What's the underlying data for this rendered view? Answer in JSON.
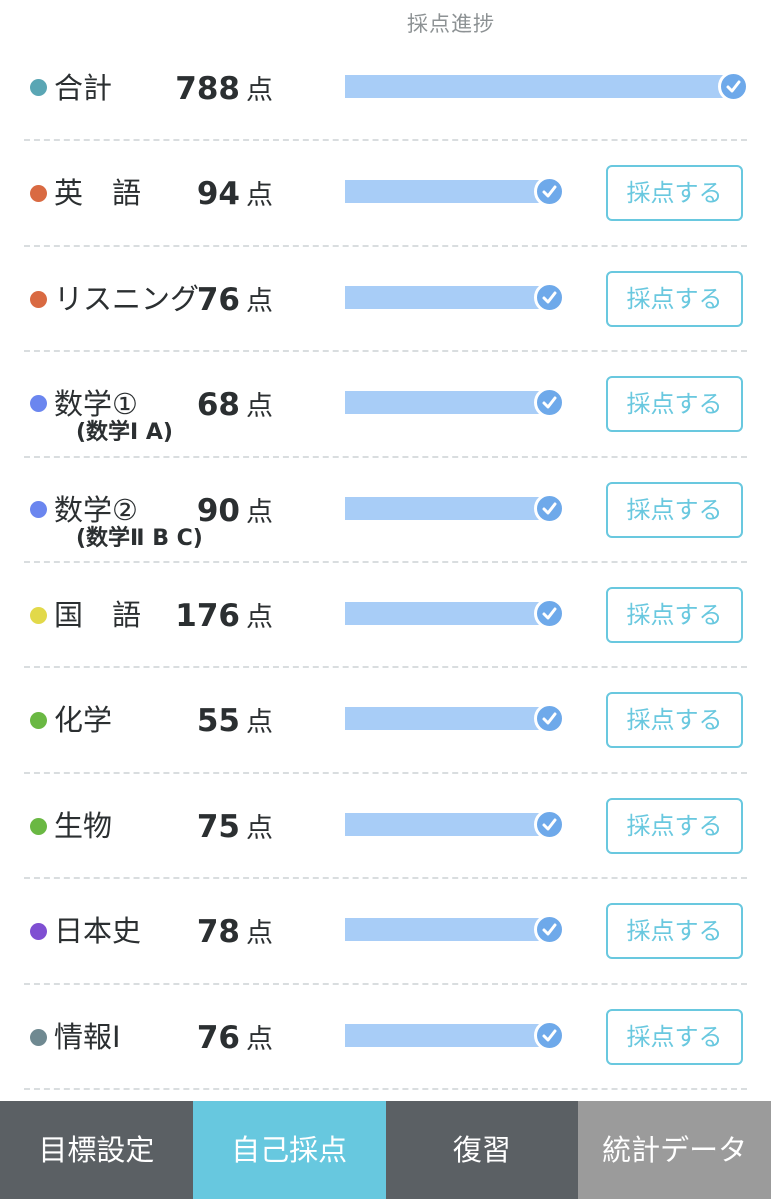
{
  "header": {
    "title": "採点進捗"
  },
  "total": {
    "name": "合計",
    "score": "788",
    "unit": "点",
    "dot_color": "#5aa6b4",
    "progress": 1.0,
    "complete": true
  },
  "subjects": [
    {
      "name": "英　語",
      "sub": "",
      "score": "94",
      "unit": "点",
      "dot_color": "#d96a42",
      "progress": 1.0,
      "complete": true,
      "button": "採点する"
    },
    {
      "name": "リスニング",
      "sub": "",
      "score": "76",
      "unit": "点",
      "dot_color": "#d96a42",
      "progress": 1.0,
      "complete": true,
      "button": "採点する"
    },
    {
      "name": "数学①",
      "sub": "(数学Ⅰ A)",
      "score": "68",
      "unit": "点",
      "dot_color": "#6b86ef",
      "progress": 1.0,
      "complete": true,
      "button": "採点する"
    },
    {
      "name": "数学②",
      "sub": "(数学Ⅱ B C)",
      "score": "90",
      "unit": "点",
      "dot_color": "#6b86ef",
      "progress": 1.0,
      "complete": true,
      "button": "採点する"
    },
    {
      "name": "国　語",
      "sub": "",
      "score": "176",
      "unit": "点",
      "dot_color": "#e2d94a",
      "progress": 1.0,
      "complete": true,
      "button": "採点する"
    },
    {
      "name": "化学",
      "sub": "",
      "score": "55",
      "unit": "点",
      "dot_color": "#6ab843",
      "progress": 1.0,
      "complete": true,
      "button": "採点する"
    },
    {
      "name": "生物",
      "sub": "",
      "score": "75",
      "unit": "点",
      "dot_color": "#6ab843",
      "progress": 1.0,
      "complete": true,
      "button": "採点する"
    },
    {
      "name": "日本史",
      "sub": "",
      "score": "78",
      "unit": "点",
      "dot_color": "#7f4fd2",
      "progress": 1.0,
      "complete": true,
      "button": "採点する"
    },
    {
      "name": "情報Ⅰ",
      "sub": "",
      "score": "76",
      "unit": "点",
      "dot_color": "#6f8991",
      "progress": 1.0,
      "complete": true,
      "button": "採点する"
    }
  ],
  "tabs": [
    {
      "label": "目標設定",
      "color": "#5b6064",
      "active": false
    },
    {
      "label": "自己採点",
      "color": "#67c8df",
      "active": true
    },
    {
      "label": "復習",
      "color": "#5b6064",
      "active": false
    },
    {
      "label": "統計データ",
      "color": "#9b9b9b",
      "active": false
    }
  ],
  "colors": {
    "progress_fill": "#a8cdf7",
    "check": "#6ea9ea",
    "button": "#69c8df"
  }
}
